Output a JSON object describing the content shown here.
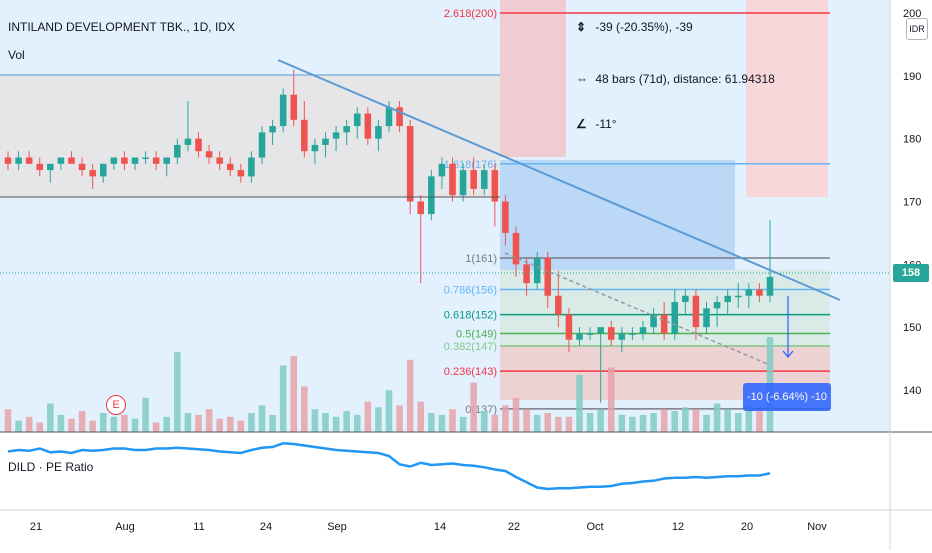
{
  "header": {
    "symbol_title": "INTILAND DEVELOPMENT TBK., 1D, IDX",
    "volume_label": "Vol",
    "indicator_label": "DILD · PE Ratio",
    "currency_badge": "IDR",
    "last_price_tag": "158",
    "earnings_marker": "E"
  },
  "measure_tool": {
    "price_change": "-39 (-20.35%), -39",
    "bars_range": "48 bars (71d), distance: 61.94318",
    "angle": "-11°",
    "ruler_result": "-10 (-6.64%) -10"
  },
  "colors": {
    "up": "#26a69a",
    "down": "#ef5350",
    "trendline": "#5b9bd5",
    "fib_1": "#787b86",
    "fib_0786": "#64b5f6",
    "fib_0618": "#089981",
    "fib_05": "#4caf50",
    "fib_0382": "#81c784",
    "fib_0236": "#f23645",
    "pe_line": "#2196f3"
  },
  "chart_data": {
    "type": "candlestick",
    "title": "INTILAND DEVELOPMENT TBK., 1D, IDX",
    "ylim": [
      133,
      203
    ],
    "y_ticks": [
      140,
      150,
      160,
      170,
      180,
      190,
      200
    ],
    "x_tick_labels": [
      "21",
      "Aug",
      "11",
      "24",
      "Sep",
      "14",
      "22",
      "Oct",
      "12",
      "20",
      "Nov"
    ],
    "last_price": 158,
    "fib_levels": [
      {
        "ratio": "2.618",
        "price": 200,
        "label": "2.618(200)"
      },
      {
        "ratio": "1.618",
        "price": 176,
        "label": "1.618(176)"
      },
      {
        "ratio": "1",
        "price": 161,
        "label": "1(161)"
      },
      {
        "ratio": "0.786",
        "price": 156,
        "label": "0.786(156)"
      },
      {
        "ratio": "0.618",
        "price": 152,
        "label": "0.618(152)"
      },
      {
        "ratio": "0.5",
        "price": 149,
        "label": "0.5(149)"
      },
      {
        "ratio": "0.382",
        "price": 147,
        "label": "0.382(147)"
      },
      {
        "ratio": "0.236",
        "price": 143,
        "label": "0.236(143)"
      },
      {
        "ratio": "0",
        "price": 137,
        "label": "0(137)"
      }
    ],
    "candles": [
      [
        177,
        178,
        175,
        176
      ],
      [
        176,
        178,
        175,
        177
      ],
      [
        177,
        178,
        176,
        176
      ],
      [
        176,
        177,
        174,
        175
      ],
      [
        175,
        176,
        173,
        176
      ],
      [
        176,
        177,
        175,
        177
      ],
      [
        177,
        178,
        176,
        176
      ],
      [
        176,
        177,
        174,
        175
      ],
      [
        175,
        176,
        172,
        174
      ],
      [
        174,
        176,
        173,
        176
      ],
      [
        176,
        177,
        175,
        177
      ],
      [
        177,
        178,
        175,
        176
      ],
      [
        176,
        177,
        175,
        177
      ],
      [
        177,
        178,
        176,
        177
      ],
      [
        177,
        178,
        175,
        176
      ],
      [
        176,
        177,
        174,
        177
      ],
      [
        177,
        180,
        176,
        179
      ],
      [
        179,
        186,
        178,
        180
      ],
      [
        180,
        181,
        177,
        178
      ],
      [
        178,
        179,
        176,
        177
      ],
      [
        177,
        178,
        175,
        176
      ],
      [
        176,
        177,
        174,
        175
      ],
      [
        175,
        176,
        173,
        174
      ],
      [
        174,
        178,
        173,
        177
      ],
      [
        177,
        182,
        176,
        181
      ],
      [
        181,
        183,
        179,
        182
      ],
      [
        182,
        188,
        181,
        187
      ],
      [
        187,
        191,
        182,
        183
      ],
      [
        183,
        186,
        177,
        178
      ],
      [
        178,
        180,
        176,
        179
      ],
      [
        179,
        181,
        177,
        180
      ],
      [
        180,
        182,
        178,
        181
      ],
      [
        181,
        183,
        179,
        182
      ],
      [
        182,
        185,
        180,
        184
      ],
      [
        184,
        185,
        179,
        180
      ],
      [
        180,
        183,
        178,
        182
      ],
      [
        182,
        186,
        181,
        185
      ],
      [
        185,
        186,
        181,
        182
      ],
      [
        182,
        183,
        168,
        170
      ],
      [
        170,
        171,
        157,
        168
      ],
      [
        168,
        175,
        167,
        174
      ],
      [
        174,
        177,
        172,
        176
      ],
      [
        176,
        177,
        170,
        171
      ],
      [
        171,
        176,
        170,
        175
      ],
      [
        175,
        177,
        171,
        172
      ],
      [
        172,
        176,
        171,
        175
      ],
      [
        175,
        176,
        166,
        170
      ],
      [
        170,
        171,
        163,
        165
      ],
      [
        165,
        166,
        158,
        160
      ],
      [
        160,
        161,
        155,
        157
      ],
      [
        157,
        162,
        156,
        161
      ],
      [
        161,
        162,
        153,
        155
      ],
      [
        155,
        159,
        150,
        152
      ],
      [
        152,
        153,
        146,
        148
      ],
      [
        148,
        150,
        147,
        149
      ],
      [
        149,
        150,
        148,
        149
      ],
      [
        149,
        150,
        138,
        150
      ],
      [
        150,
        151,
        147,
        148
      ],
      [
        148,
        150,
        146,
        149
      ],
      [
        149,
        150,
        148,
        149
      ],
      [
        149,
        151,
        148,
        150
      ],
      [
        150,
        153,
        149,
        152
      ],
      [
        152,
        154,
        148,
        149
      ],
      [
        149,
        156,
        148,
        154
      ],
      [
        154,
        156,
        152,
        155
      ],
      [
        155,
        156,
        148,
        150
      ],
      [
        150,
        154,
        149,
        153
      ],
      [
        153,
        155,
        150,
        154
      ],
      [
        154,
        156,
        152,
        155
      ],
      [
        155,
        157,
        153,
        155
      ],
      [
        155,
        157,
        153,
        156
      ],
      [
        156,
        157,
        154,
        155
      ],
      [
        155,
        167,
        154,
        158
      ]
    ],
    "volume": [
      12,
      6,
      8,
      5,
      15,
      9,
      7,
      11,
      6,
      10,
      8,
      9,
      7,
      18,
      5,
      8,
      42,
      10,
      9,
      12,
      7,
      8,
      6,
      10,
      14,
      9,
      35,
      40,
      24,
      12,
      10,
      8,
      11,
      9,
      16,
      13,
      22,
      14,
      38,
      16,
      10,
      9,
      12,
      8,
      26,
      11,
      9,
      14,
      18,
      12,
      9,
      10,
      8,
      8,
      30,
      10,
      12,
      34,
      9,
      8,
      9,
      10,
      12,
      11,
      13,
      12,
      9,
      15,
      12,
      10,
      14,
      11,
      50
    ],
    "pe_ratio_series": [
      0.62,
      0.64,
      0.63,
      0.66,
      0.61,
      0.62,
      0.6,
      0.64,
      0.63,
      0.64,
      0.66,
      0.66,
      0.64,
      0.64,
      0.66,
      0.66,
      0.67,
      0.66,
      0.65,
      0.64,
      0.62,
      0.61,
      0.6,
      0.64,
      0.67,
      0.68,
      0.73,
      0.72,
      0.7,
      0.68,
      0.66,
      0.64,
      0.63,
      0.62,
      0.61,
      0.6,
      0.56,
      0.45,
      0.42,
      0.47,
      0.44,
      0.45,
      0.46,
      0.44,
      0.43,
      0.41,
      0.38,
      0.36,
      0.28,
      0.21,
      0.14,
      0.12,
      0.13,
      0.13,
      0.14,
      0.15,
      0.15,
      0.16,
      0.19,
      0.2,
      0.22,
      0.23,
      0.26,
      0.27,
      0.27,
      0.28,
      0.27,
      0.28,
      0.29,
      0.29,
      0.3,
      0.3,
      0.33
    ]
  }
}
